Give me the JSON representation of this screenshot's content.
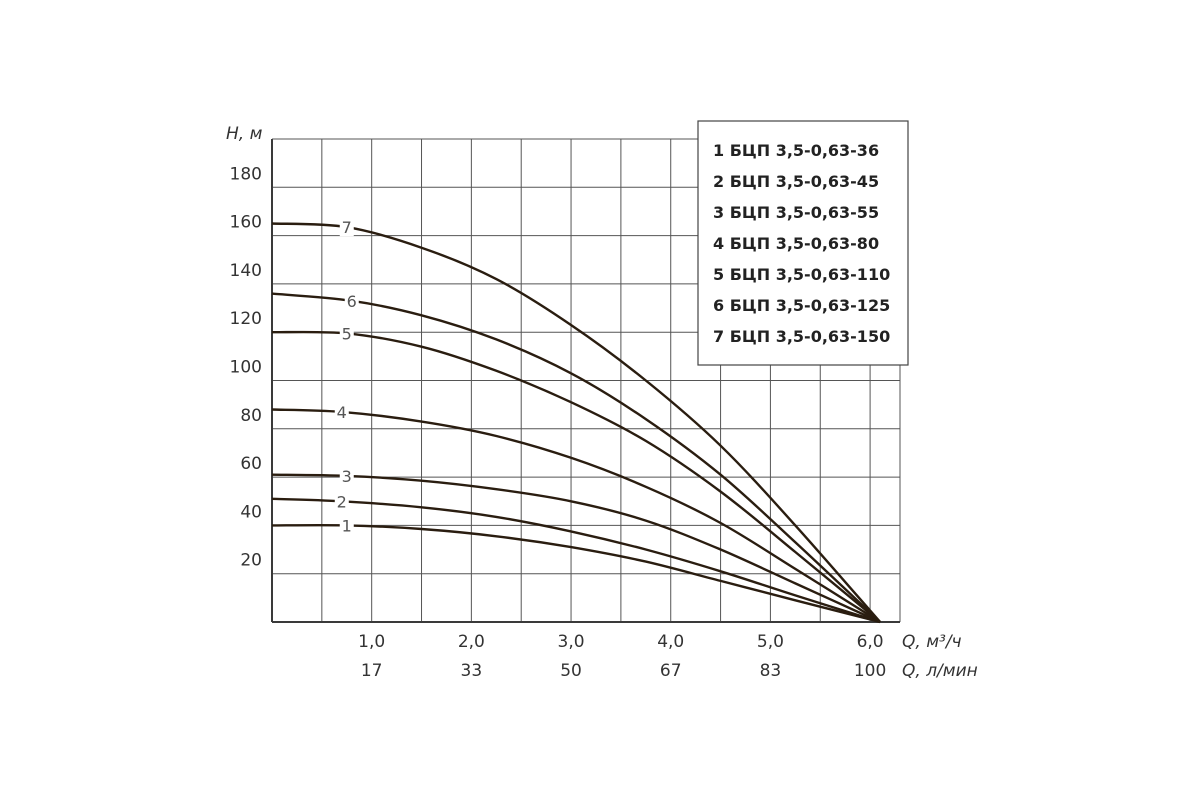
{
  "chart_data": {
    "type": "line",
    "y_axis": {
      "title": "H, м",
      "range": [
        0,
        200
      ],
      "ticks": [
        "20",
        "40",
        "60",
        "80",
        "100",
        "120",
        "140",
        "160",
        "180"
      ]
    },
    "x_axis": {
      "title_primary": "Q, м³/ч",
      "title_secondary": "Q, л/мин",
      "range": [
        0,
        6.3
      ],
      "ticks": [
        {
          "x": 1.0,
          "primary": "1,0",
          "secondary": "17"
        },
        {
          "x": 2.0,
          "primary": "2,0",
          "secondary": "33"
        },
        {
          "x": 3.0,
          "primary": "3,0",
          "secondary": "50"
        },
        {
          "x": 4.0,
          "primary": "4,0",
          "secondary": "67"
        },
        {
          "x": 5.0,
          "primary": "5,0",
          "secondary": "83"
        },
        {
          "x": 6.0,
          "primary": "6,0",
          "secondary": "100"
        }
      ]
    },
    "grid": true,
    "legend": {
      "placement": "top-right",
      "entries": [
        "1 БЦП 3,5-0,63-36",
        "2 БЦП 3,5-0,63-45",
        "3 БЦП 3,5-0,63-55",
        "4 БЦП 3,5-0,63-80",
        "5 БЦП 3,5-0,63-110",
        "6 БЦП 3,5-0,63-125",
        "7 БЦП 3,5-0,63-150"
      ]
    },
    "series": [
      {
        "label": "1",
        "x": [
          0,
          0.75,
          1.5,
          2.25,
          3.0,
          3.75,
          4.5,
          5.25,
          6.1
        ],
        "y": [
          40,
          40,
          38.5,
          35.5,
          31,
          25,
          17,
          9,
          0
        ]
      },
      {
        "label": "2",
        "x": [
          0,
          0.7,
          1.5,
          2.25,
          3.0,
          3.75,
          4.5,
          5.25,
          6.1
        ],
        "y": [
          51,
          50,
          47.5,
          43.5,
          37.5,
          30,
          21,
          11,
          0
        ]
      },
      {
        "label": "3",
        "x": [
          0,
          0.75,
          1.5,
          2.25,
          3.0,
          3.75,
          4.5,
          5.25,
          6.1
        ],
        "y": [
          61,
          60.5,
          58.5,
          55,
          50,
          42,
          30,
          16,
          0
        ]
      },
      {
        "label": "4",
        "x": [
          0,
          0.7,
          1.5,
          2.25,
          3.0,
          3.75,
          4.5,
          5.25,
          6.1
        ],
        "y": [
          88,
          87,
          83,
          77,
          68,
          56,
          41,
          22,
          0
        ]
      },
      {
        "label": "5",
        "x": [
          0,
          0.75,
          1.5,
          2.25,
          3.0,
          3.75,
          4.5,
          5.25,
          6.1
        ],
        "y": [
          120,
          119.5,
          114,
          104,
          91,
          75,
          54,
          29,
          0
        ]
      },
      {
        "label": "6",
        "x": [
          0,
          0.8,
          1.5,
          2.25,
          3.0,
          3.75,
          4.5,
          5.25,
          6.1
        ],
        "y": [
          136,
          133,
          127,
          117,
          103,
          84,
          61,
          33,
          0
        ]
      },
      {
        "label": "7",
        "x": [
          0,
          0.75,
          1.5,
          2.25,
          3.0,
          3.75,
          4.5,
          5.25,
          6.1
        ],
        "y": [
          165,
          163.5,
          155,
          142,
          123,
          100,
          73,
          40,
          0
        ]
      }
    ]
  }
}
